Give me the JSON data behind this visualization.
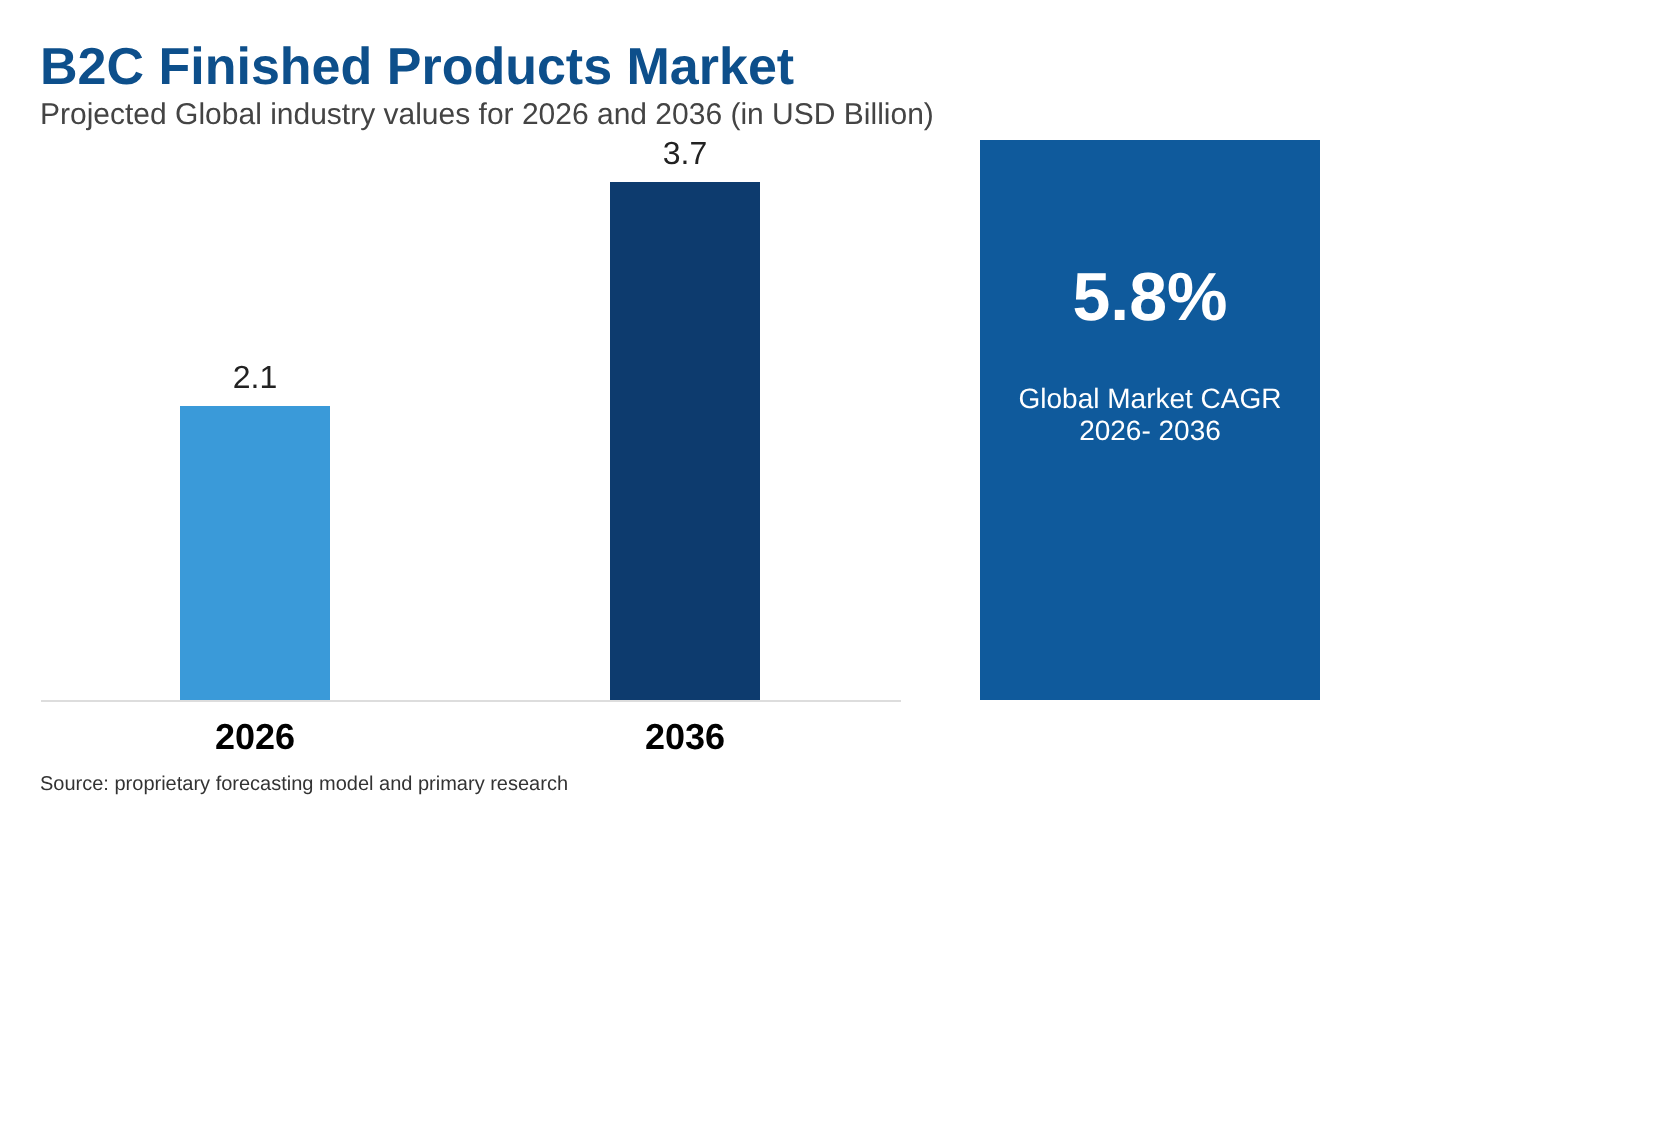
{
  "chart_data": {
    "type": "bar",
    "title": "B2C Finished Products Market",
    "subtitle": "Projected Global industry values for 2026 and 2036 (in USD Billion)",
    "categories": [
      "2026",
      "2036"
    ],
    "values": [
      2.1,
      3.7
    ],
    "colors": [
      "#3a9ad9",
      "#0d3b6e"
    ],
    "data_labels": true,
    "annotations": [
      "5.8%",
      "Global Market CAGR 2026- 2036",
      "Source: proprietary forecasting model and primary research"
    ]
  }
}
